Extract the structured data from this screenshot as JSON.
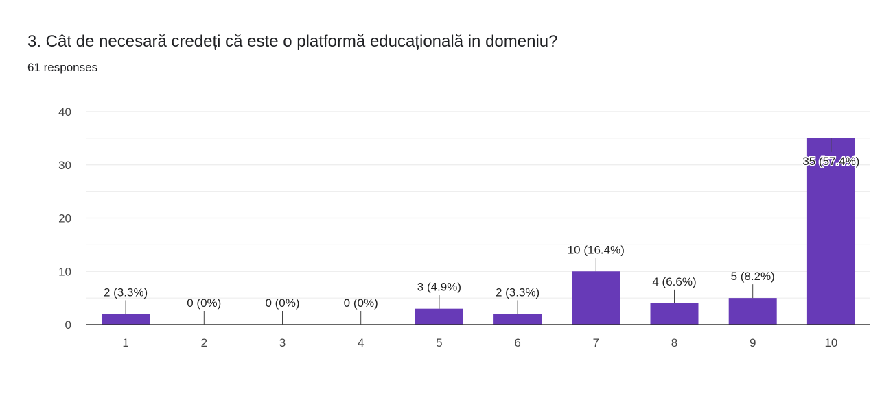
{
  "question": {
    "title": "3. Cât de necesară credeți că este o platformă educațională in domeniu?",
    "responses": "61 responses"
  },
  "colors": {
    "bar": "#673ab7",
    "grid": "#ebebeb",
    "axis": "#333333",
    "leader": "#444444"
  },
  "chart_data": {
    "type": "bar",
    "categories": [
      "1",
      "2",
      "3",
      "4",
      "5",
      "6",
      "7",
      "8",
      "9",
      "10"
    ],
    "values": [
      2,
      0,
      0,
      0,
      3,
      2,
      10,
      4,
      5,
      35
    ],
    "data_labels": [
      "2 (3.3%)",
      "0 (0%)",
      "0 (0%)",
      "0 (0%)",
      "3 (4.9%)",
      "2 (3.3%)",
      "10 (16.4%)",
      "4 (6.6%)",
      "5 (8.2%)",
      "35 (57.4%)"
    ],
    "ylim": [
      0,
      40
    ],
    "yticks": [
      0,
      10,
      20,
      30,
      40
    ],
    "grid": true,
    "legend": "none",
    "title": "",
    "xlabel": "",
    "ylabel": ""
  }
}
